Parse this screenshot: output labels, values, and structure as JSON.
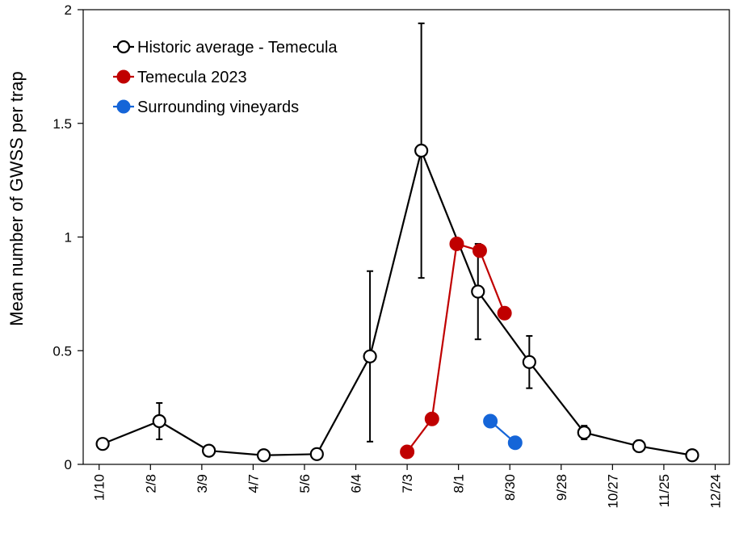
{
  "chart_data": {
    "type": "line",
    "title": "",
    "xlabel": "",
    "ylabel": "Mean number of GWSS per trap",
    "ylim": [
      0,
      2
    ],
    "yticks": [
      "0",
      "0.5",
      "1",
      "1.5",
      "2"
    ],
    "xlim": [
      0,
      365
    ],
    "xticks": [
      {
        "label": "1/10",
        "day": 9
      },
      {
        "label": "2/8",
        "day": 38
      },
      {
        "label": "3/9",
        "day": 67
      },
      {
        "label": "4/7",
        "day": 96
      },
      {
        "label": "5/6",
        "day": 125
      },
      {
        "label": "6/4",
        "day": 154
      },
      {
        "label": "7/3",
        "day": 183
      },
      {
        "label": "8/1",
        "day": 212
      },
      {
        "label": "8/30",
        "day": 241
      },
      {
        "label": "9/28",
        "day": 270
      },
      {
        "label": "10/27",
        "day": 299
      },
      {
        "label": "11/25",
        "day": 328
      },
      {
        "label": "12/24",
        "day": 357
      }
    ],
    "legend_position": "top-left",
    "series": [
      {
        "name": "Historic average - Temecula",
        "color": "#000000",
        "marker": "open-circle",
        "points": [
          {
            "x": 11,
            "y": 0.09
          },
          {
            "x": 43,
            "y": 0.19,
            "err": 0.08
          },
          {
            "x": 71,
            "y": 0.06
          },
          {
            "x": 102,
            "y": 0.04
          },
          {
            "x": 132,
            "y": 0.045
          },
          {
            "x": 162,
            "y": 0.475,
            "err": 0.375
          },
          {
            "x": 191,
            "y": 1.38,
            "err": 0.56
          },
          {
            "x": 223,
            "y": 0.76,
            "err": 0.21
          },
          {
            "x": 252,
            "y": 0.45,
            "err": 0.115
          },
          {
            "x": 283,
            "y": 0.14,
            "err": 0.03
          },
          {
            "x": 314,
            "y": 0.08,
            "err": 0.025
          },
          {
            "x": 344,
            "y": 0.04
          }
        ]
      },
      {
        "name": "Temecula 2023",
        "color": "#c00000",
        "marker": "filled-circle",
        "points": [
          {
            "x": 183,
            "y": 0.055
          },
          {
            "x": 197,
            "y": 0.2
          },
          {
            "x": 211,
            "y": 0.97
          },
          {
            "x": 224,
            "y": 0.94
          },
          {
            "x": 238,
            "y": 0.665
          }
        ]
      },
      {
        "name": "Surrounding vineyards",
        "color": "#1565d8",
        "marker": "filled-circle",
        "points": [
          {
            "x": 230,
            "y": 0.19
          },
          {
            "x": 244,
            "y": 0.095
          }
        ]
      }
    ]
  }
}
